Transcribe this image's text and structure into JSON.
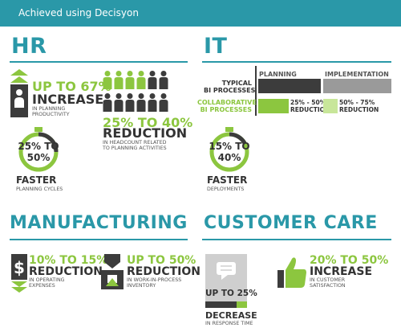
{
  "banner": {
    "title": "Achieved using Decisyon"
  },
  "hr": {
    "title": "HR",
    "productivity": {
      "headline": "UP TO 67%",
      "metric": "INCREASE",
      "detail_1": "IN PLANNING",
      "detail_2": "PRODUCTIVITY"
    },
    "headcount": {
      "headline": "25% TO 40%",
      "metric": "REDUCTION",
      "detail_1": "IN HEADCOUNT RELATED",
      "detail_2": "TO PLANNING ACTIVITIES"
    },
    "cycles": {
      "ring_line_1": "25% TO",
      "ring_line_2": "50%",
      "metric": "FASTER",
      "detail": "PLANNING CYCLES"
    }
  },
  "it": {
    "title": "IT",
    "col_planning": "PLANNING",
    "col_implementation": "IMPLEMENTATION",
    "typical_1": "TYPICAL",
    "typical_2": "BI PROCESSES",
    "collab_1": "COLLABORATIVE",
    "collab_2": "BI PROCESSES",
    "planning_range": "25% - 50%",
    "planning_metric": "REDUCTION",
    "impl_range": "50% - 75%",
    "impl_metric": "REDUCTION",
    "deployments": {
      "ring_line_1": "15% TO",
      "ring_line_2": "40%",
      "metric": "FASTER",
      "detail": "DEPLOYMENTS"
    }
  },
  "manufacturing": {
    "title": "MANUFACTURING",
    "operating": {
      "headline": "10% TO 15%",
      "metric": "REDUCTION",
      "detail_1": "IN OPERATING",
      "detail_2": "EXPENSES"
    },
    "inventory": {
      "headline": "UP TO 50%",
      "metric": "REDUCTION",
      "detail_1": "IN WORK-IN-PROCESS",
      "detail_2": "INVENTORY"
    }
  },
  "customer_care": {
    "title": "CUSTOMER CARE",
    "response": {
      "headline": "UP TO 25%",
      "metric": "DECREASE",
      "detail": "IN RESPONSE TIME"
    },
    "satisfaction": {
      "headline": "20% TO 50%",
      "metric": "INCREASE",
      "detail_1": "IN CUSTOMER",
      "detail_2": "SATISFACTION"
    }
  },
  "colors": {
    "teal": "#2a98a8",
    "green": "#8cc63f",
    "dark": "#3c3c3c",
    "gray": "#9a9a9a",
    "light_green": "#c8e69a"
  },
  "icons": [
    "person-up-icon",
    "people-grid-icon",
    "stopwatch-icon",
    "dollar-down-icon",
    "box-down-icon",
    "chat-bubble-icon",
    "thumbs-up-icon"
  ]
}
